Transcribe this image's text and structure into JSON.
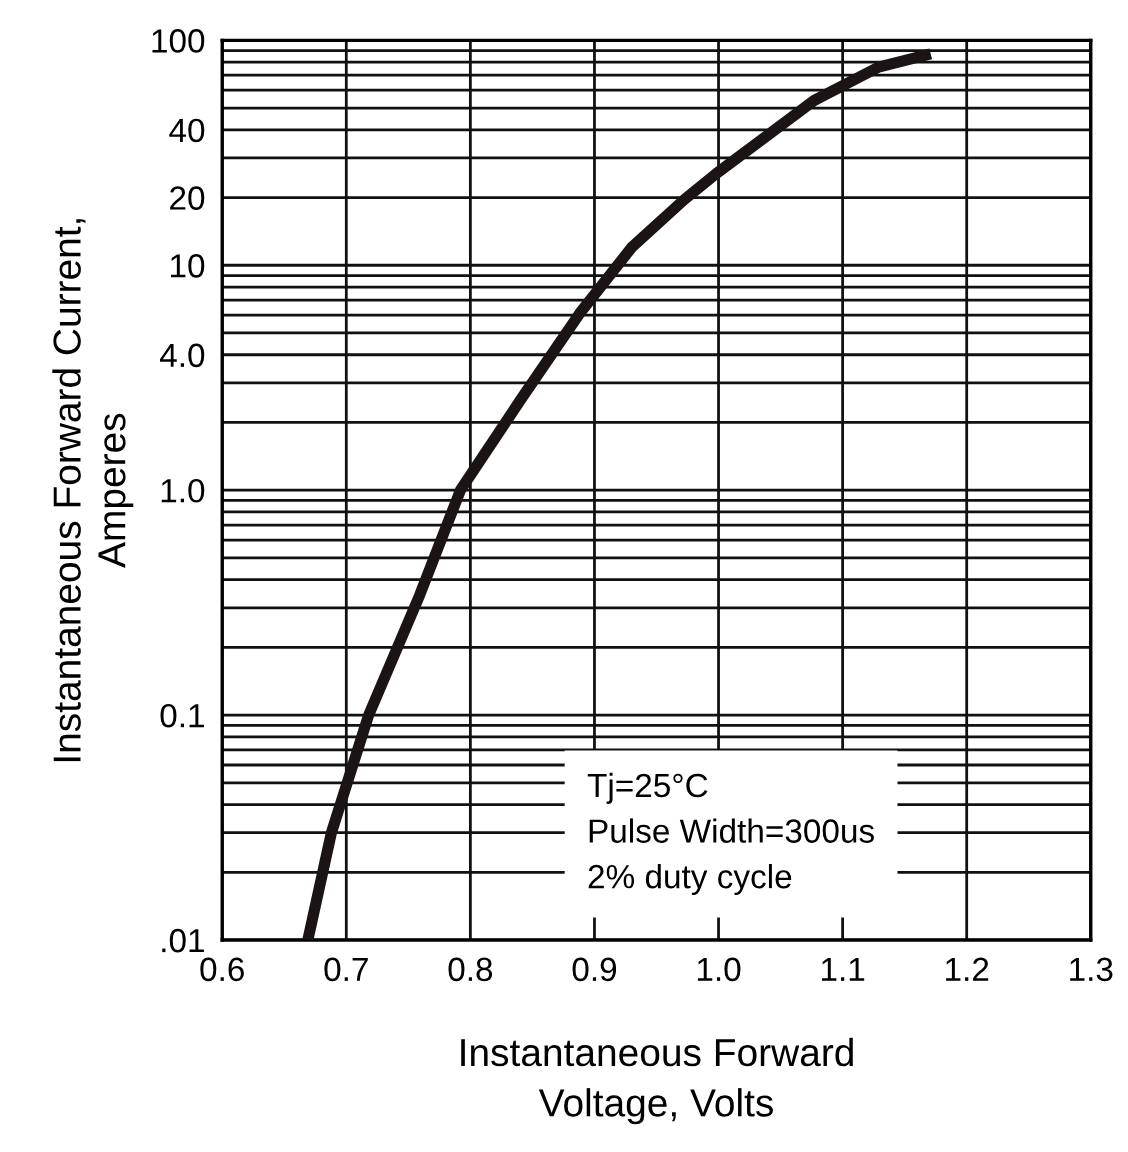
{
  "chart_data": {
    "type": "line",
    "xlabel": "Instantaneous Forward\nVoltage, Volts",
    "ylabel": "Instantaneous Forward Current,\nAmperes",
    "series": [
      {
        "color": "#1a1414",
        "x": [
          0.669,
          0.688,
          0.718,
          0.759,
          0.792,
          0.84,
          0.888,
          0.93,
          0.972,
          0.998,
          1.077,
          1.129,
          1.171
        ],
        "values": [
          0.01,
          0.03,
          0.1,
          0.34,
          1.0,
          2.5,
          6.1,
          12,
          19.5,
          25.5,
          54,
          76,
          87
        ]
      }
    ],
    "xlim": [
      0.6,
      1.3
    ],
    "xticks": [
      0.6,
      0.7,
      0.8,
      0.9,
      {
        "value": 1,
        "label": "1.0"
      },
      1.1,
      1.2,
      1.3
    ],
    "ylim": [
      0.01,
      100
    ],
    "yticks": [
      {
        "value": 0.01,
        "label": ".01"
      },
      0.1,
      {
        "value": 1,
        "label": "1.0"
      },
      {
        "value": 4,
        "label": "4.0"
      },
      10,
      20,
      40,
      100
    ],
    "log": "y",
    "grid": true,
    "legend": false,
    "marker": "none",
    "line_style": "solid",
    "annotations": [
      "Tj=25°C\nPulse Width=300us\n2% duty cycle"
    ]
  }
}
